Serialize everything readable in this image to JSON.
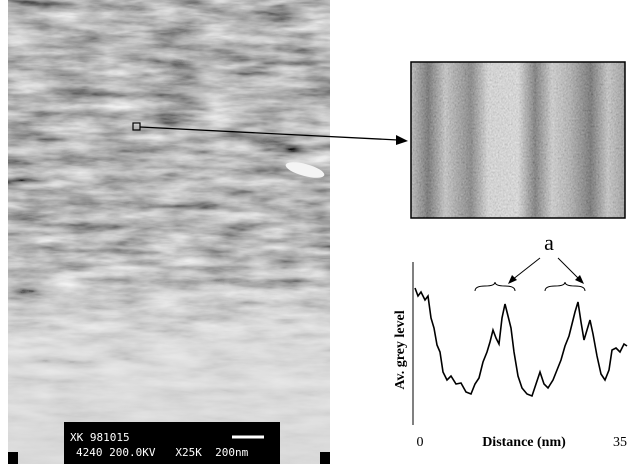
{
  "micrograph": {
    "info_line1": "XK 981015",
    "info_line2": "4240 200.0KV   X25K  200nm"
  },
  "profile": {
    "annotation": "a",
    "y_label": "Av. grey level",
    "x_label": "Distance (nm)",
    "x_start": 0,
    "x_end": 35
  }
}
